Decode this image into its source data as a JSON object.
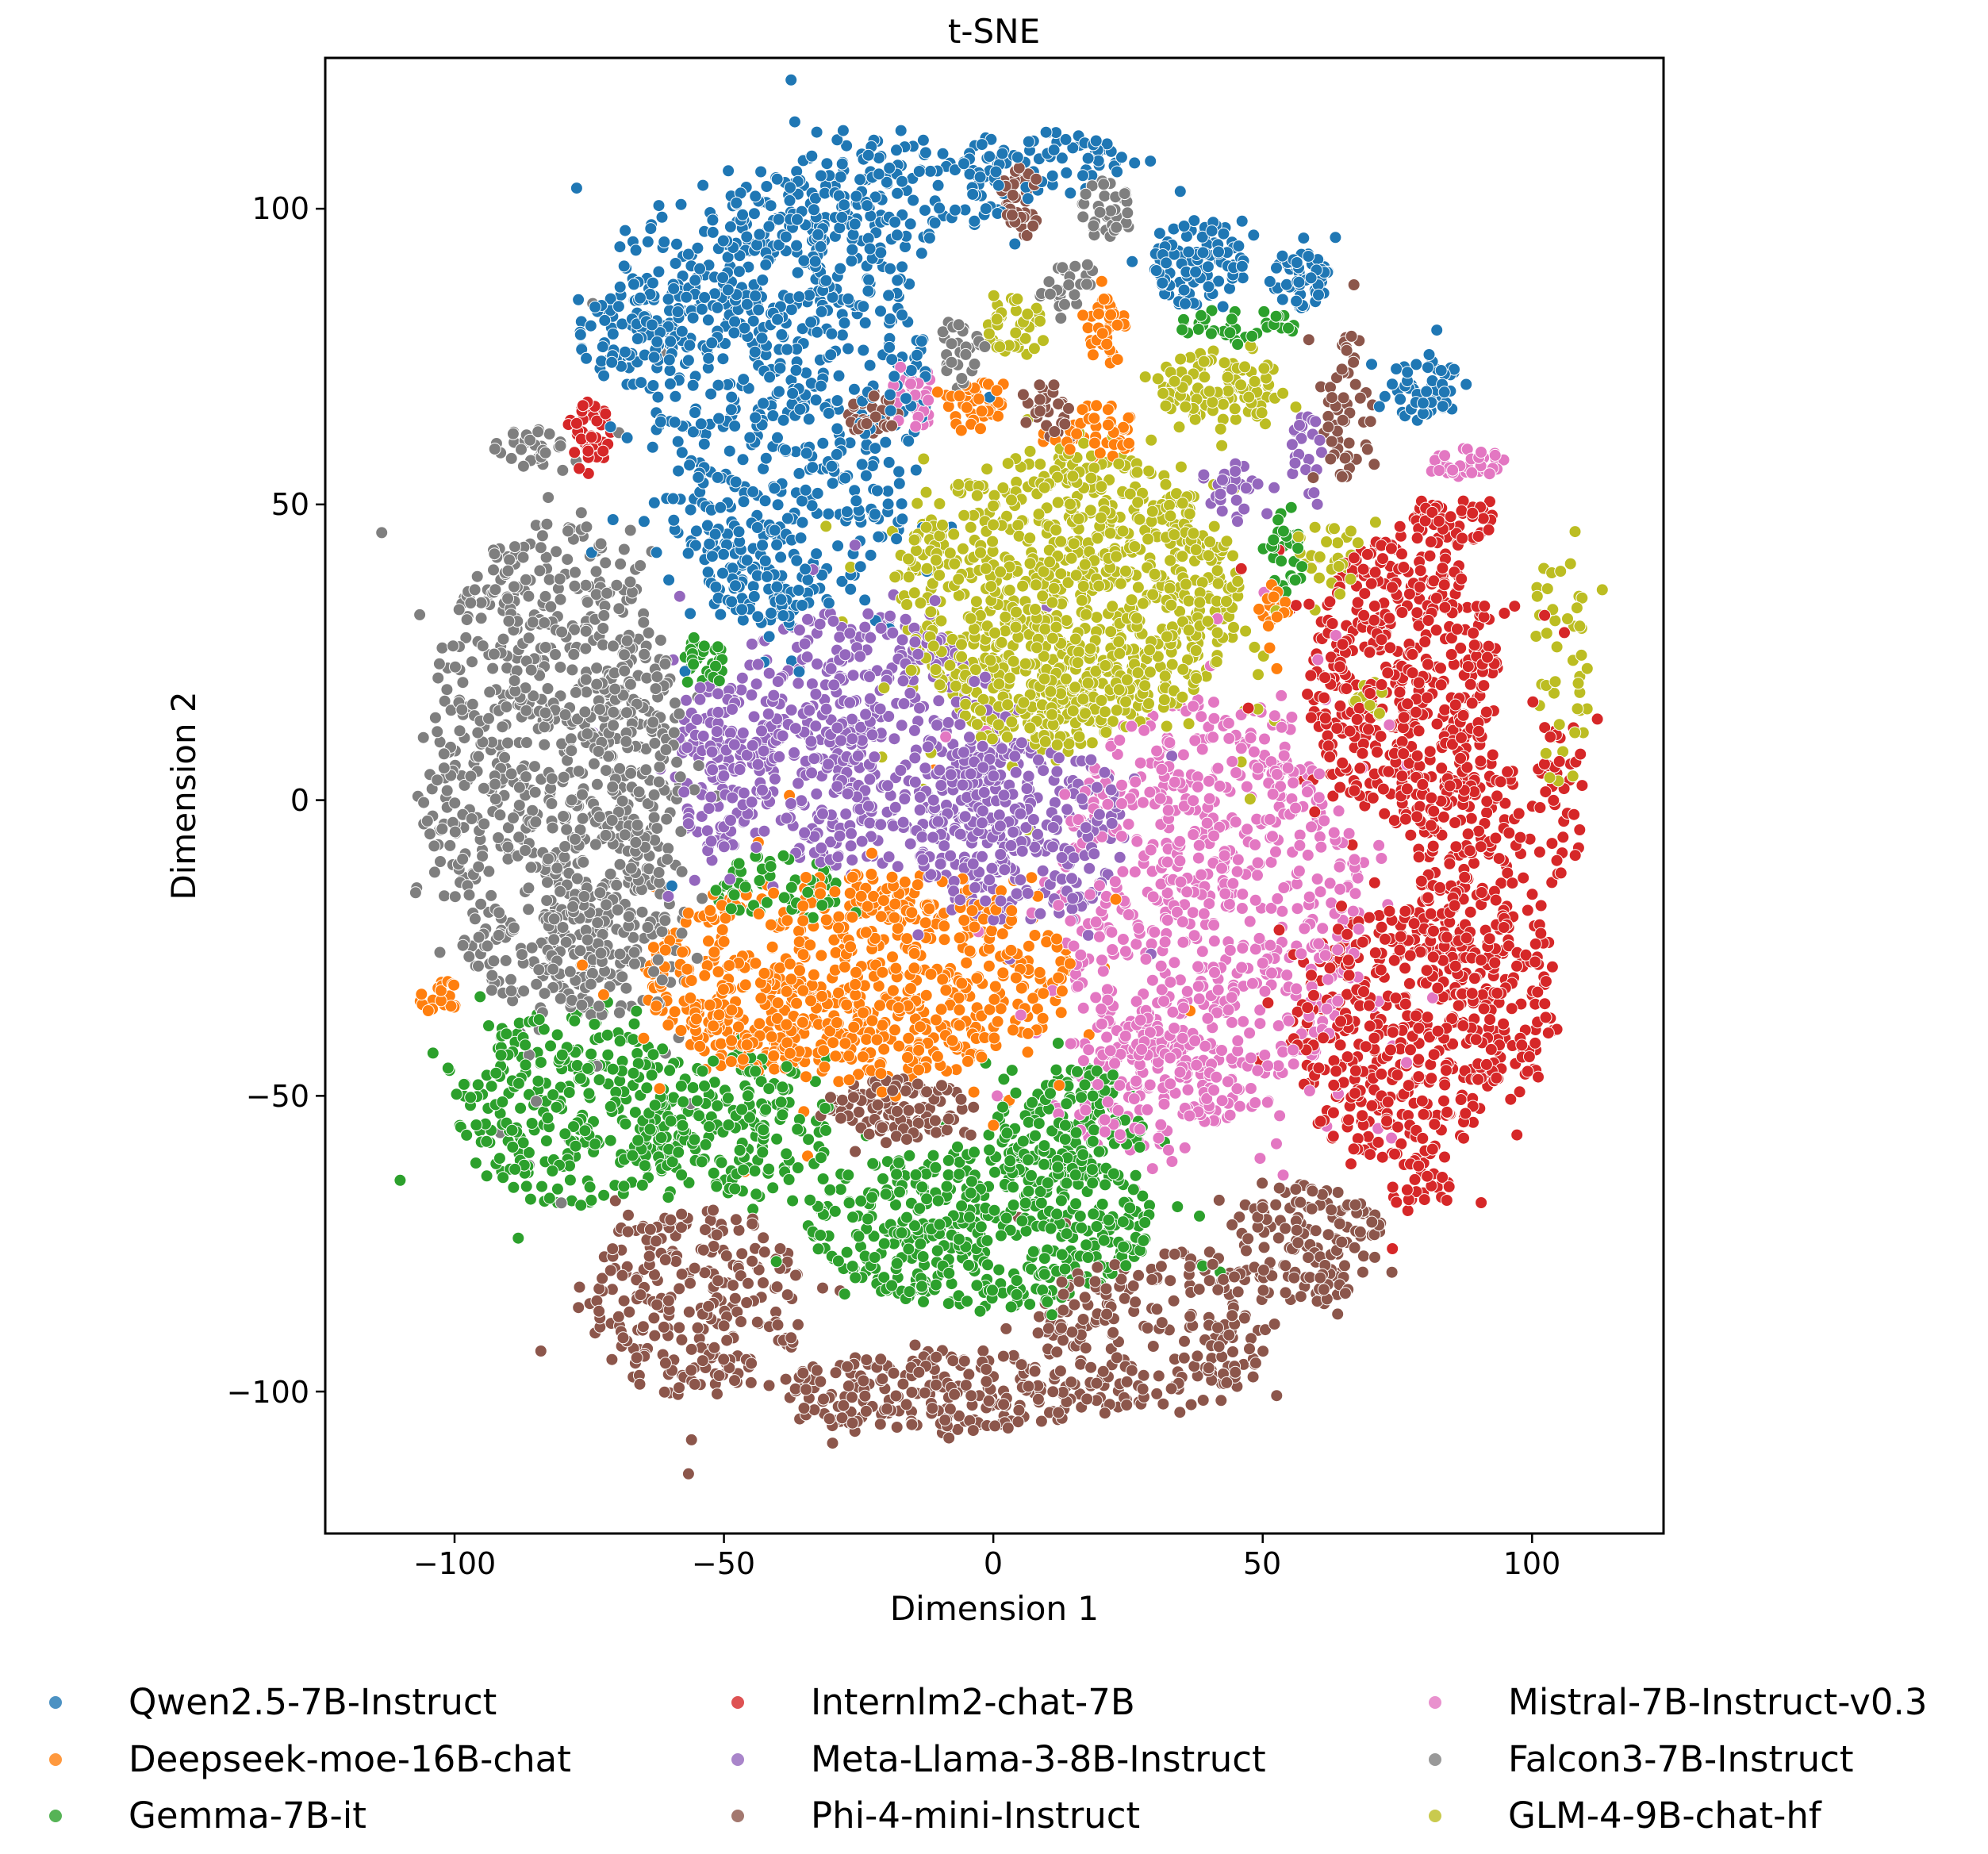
{
  "chart_data": {
    "type": "scatter",
    "title": "t-SNE",
    "xlabel": "Dimension 1",
    "ylabel": "Dimension 2",
    "xlim": [
      -124,
      124.4
    ],
    "ylim": [
      -124,
      125.5
    ],
    "xticks": [
      -100,
      -50,
      0,
      50,
      100
    ],
    "yticks": [
      -100,
      -50,
      0,
      50,
      100
    ],
    "xtick_labels": [
      "−100",
      "−50",
      "0",
      "50",
      "100"
    ],
    "ytick_labels": [
      "−100",
      "−50",
      "0",
      "50",
      "100"
    ],
    "grid": false,
    "legend_position": "below, 3 columns",
    "marker": {
      "radius_px": 7.5,
      "edgecolor": "#ffffff",
      "edgewidth": 1
    },
    "series": [
      {
        "name": "Qwen2.5-7B-Instruct",
        "color": "#1f77b4",
        "clusters": [
          {
            "cx": -38,
            "cy": 68,
            "rx": 26,
            "ry": 38,
            "n": 620
          },
          {
            "cx": -50,
            "cy": 88,
            "rx": 22,
            "ry": 14,
            "n": 160
          },
          {
            "cx": -68,
            "cy": 78,
            "rx": 9,
            "ry": 8,
            "n": 60
          },
          {
            "cx": -18,
            "cy": 103,
            "rx": 22,
            "ry": 9,
            "n": 150
          },
          {
            "cx": 10,
            "cy": 108,
            "rx": 16,
            "ry": 5,
            "n": 70
          },
          {
            "cx": 38,
            "cy": 91,
            "rx": 9,
            "ry": 8,
            "n": 110
          },
          {
            "cx": 57,
            "cy": 88,
            "rx": 6,
            "ry": 5,
            "n": 60
          },
          {
            "cx": 80,
            "cy": 70,
            "rx": 7,
            "ry": 6,
            "n": 55
          },
          {
            "cx": -44,
            "cy": 38,
            "rx": 12,
            "ry": 8,
            "n": 80
          }
        ]
      },
      {
        "name": "Deepseek-moe-16B-chat",
        "color": "#ff7f0e",
        "clusters": [
          {
            "cx": -25,
            "cy": -30,
            "rx": 40,
            "ry": 18,
            "n": 700
          },
          {
            "cx": -40,
            "cy": -38,
            "rx": 18,
            "ry": 8,
            "n": 120
          },
          {
            "cx": 21,
            "cy": 80,
            "rx": 4,
            "ry": 6,
            "n": 40
          },
          {
            "cx": -4,
            "cy": 67,
            "rx": 6,
            "ry": 4,
            "n": 40
          },
          {
            "cx": 20,
            "cy": 62,
            "rx": 7,
            "ry": 5,
            "n": 50
          },
          {
            "cx": -103,
            "cy": -33,
            "rx": 4,
            "ry": 3,
            "n": 20
          },
          {
            "cx": 52,
            "cy": 30,
            "rx": 3,
            "ry": 8,
            "n": 18
          }
        ]
      },
      {
        "name": "Gemma-7B-it",
        "color": "#2ca02c",
        "clusters": [
          {
            "cx": -78,
            "cy": -52,
            "rx": 22,
            "ry": 17,
            "n": 300
          },
          {
            "cx": -48,
            "cy": -55,
            "rx": 18,
            "ry": 12,
            "n": 180
          },
          {
            "cx": -2,
            "cy": -72,
            "rx": 32,
            "ry": 14,
            "n": 520
          },
          {
            "cx": 15,
            "cy": -55,
            "rx": 14,
            "ry": 10,
            "n": 140
          },
          {
            "cx": -40,
            "cy": -15,
            "rx": 12,
            "ry": 6,
            "n": 60
          },
          {
            "cx": -54,
            "cy": 23,
            "rx": 4,
            "ry": 5,
            "n": 30
          },
          {
            "cx": 45,
            "cy": 80,
            "rx": 12,
            "ry": 3,
            "n": 40
          },
          {
            "cx": 54,
            "cy": 42,
            "rx": 4,
            "ry": 8,
            "n": 30
          }
        ]
      },
      {
        "name": "Internlm2-chat-7B",
        "color": "#d62728",
        "clusters": [
          {
            "cx": 76,
            "cy": 20,
            "rx": 18,
            "ry": 25,
            "n": 480
          },
          {
            "cx": 88,
            "cy": -8,
            "rx": 10,
            "ry": 22,
            "n": 200
          },
          {
            "cx": 75,
            "cy": -40,
            "rx": 20,
            "ry": 22,
            "n": 420
          },
          {
            "cx": 97,
            "cy": -35,
            "rx": 8,
            "ry": 18,
            "n": 90
          },
          {
            "cx": 105,
            "cy": 0,
            "rx": 5,
            "ry": 15,
            "n": 40
          },
          {
            "cx": 84,
            "cy": 47,
            "rx": 9,
            "ry": 4,
            "n": 60
          },
          {
            "cx": -75,
            "cy": 62,
            "rx": 4,
            "ry": 6,
            "n": 40
          },
          {
            "cx": 80,
            "cy": -65,
            "rx": 6,
            "ry": 6,
            "n": 30
          }
        ]
      },
      {
        "name": "Meta-Llama-3-8B-Instruct",
        "color": "#9467bd",
        "clusters": [
          {
            "cx": -25,
            "cy": 10,
            "rx": 28,
            "ry": 22,
            "n": 520
          },
          {
            "cx": 5,
            "cy": -5,
            "rx": 20,
            "ry": 16,
            "n": 320
          },
          {
            "cx": -50,
            "cy": 5,
            "rx": 10,
            "ry": 14,
            "n": 120
          },
          {
            "cx": 45,
            "cy": 52,
            "rx": 5,
            "ry": 5,
            "n": 30
          },
          {
            "cx": 58,
            "cy": 58,
            "rx": 3,
            "ry": 7,
            "n": 25
          }
        ]
      },
      {
        "name": "Phi-4-mini-Instruct",
        "color": "#8c564b",
        "clusters": [
          {
            "cx": -55,
            "cy": -85,
            "rx": 20,
            "ry": 16,
            "n": 260
          },
          {
            "cx": -10,
            "cy": -100,
            "rx": 30,
            "ry": 7,
            "n": 240
          },
          {
            "cx": 30,
            "cy": -90,
            "rx": 22,
            "ry": 14,
            "n": 230
          },
          {
            "cx": 58,
            "cy": -75,
            "rx": 15,
            "ry": 10,
            "n": 150
          },
          {
            "cx": -18,
            "cy": -52,
            "rx": 14,
            "ry": 5,
            "n": 110
          },
          {
            "cx": 5,
            "cy": 101,
            "rx": 4,
            "ry": 6,
            "n": 35
          },
          {
            "cx": -22,
            "cy": 65,
            "rx": 5,
            "ry": 4,
            "n": 30
          },
          {
            "cx": 10,
            "cy": 66,
            "rx": 4,
            "ry": 5,
            "n": 30
          },
          {
            "cx": 66,
            "cy": 66,
            "rx": 5,
            "ry": 13,
            "n": 55
          }
        ]
      },
      {
        "name": "Mistral-7B-Instruct-v0.3",
        "color": "#e377c2",
        "clusters": [
          {
            "cx": 40,
            "cy": -18,
            "rx": 28,
            "ry": 36,
            "n": 760
          },
          {
            "cx": 28,
            "cy": -48,
            "rx": 18,
            "ry": 12,
            "n": 140
          },
          {
            "cx": -15,
            "cy": 68,
            "rx": 4,
            "ry": 6,
            "n": 30
          },
          {
            "cx": 88,
            "cy": 57,
            "rx": 8,
            "ry": 2.5,
            "n": 35
          }
        ]
      },
      {
        "name": "Falcon3-7B-Instruct",
        "color": "#7f7f7f",
        "clusters": [
          {
            "cx": -82,
            "cy": 5,
            "rx": 24,
            "ry": 42,
            "n": 900
          },
          {
            "cx": -70,
            "cy": -20,
            "rx": 14,
            "ry": 18,
            "n": 120
          },
          {
            "cx": -86,
            "cy": 60,
            "rx": 7,
            "ry": 4,
            "n": 30
          },
          {
            "cx": 21,
            "cy": 100,
            "rx": 5,
            "ry": 5,
            "n": 35
          },
          {
            "cx": 13,
            "cy": 87,
            "rx": 5,
            "ry": 4,
            "n": 25
          },
          {
            "cx": -6,
            "cy": 77,
            "rx": 4,
            "ry": 6,
            "n": 28
          }
        ]
      },
      {
        "name": "GLM-4-9B-chat-hf",
        "color": "#bcbd22",
        "clusters": [
          {
            "cx": 14,
            "cy": 35,
            "rx": 32,
            "ry": 24,
            "n": 900
          },
          {
            "cx": 10,
            "cy": 18,
            "rx": 18,
            "ry": 10,
            "n": 160
          },
          {
            "cx": 42,
            "cy": 70,
            "rx": 12,
            "ry": 6,
            "n": 110
          },
          {
            "cx": 4,
            "cy": 80,
            "rx": 6,
            "ry": 5,
            "n": 40
          },
          {
            "cx": 70,
            "cy": 17,
            "rx": 4,
            "ry": 3,
            "n": 15
          },
          {
            "cx": 105,
            "cy": 22,
            "rx": 6,
            "ry": 20,
            "n": 45
          },
          {
            "cx": 62,
            "cy": 42,
            "rx": 6,
            "ry": 6,
            "n": 25
          }
        ]
      }
    ]
  },
  "title": "t-SNE",
  "axes": {
    "xlabel": "Dimension 1",
    "ylabel": "Dimension 2",
    "xticks": [
      "−100",
      "−50",
      "0",
      "50",
      "100"
    ],
    "yticks": [
      "100",
      "50",
      "0",
      "−50",
      "−100"
    ]
  },
  "legend": [
    {
      "label": "Qwen2.5-7B-Instruct",
      "color": "#1f77b4"
    },
    {
      "label": "Deepseek-moe-16B-chat",
      "color": "#ff7f0e"
    },
    {
      "label": "Gemma-7B-it",
      "color": "#2ca02c"
    },
    {
      "label": "Internlm2-chat-7B",
      "color": "#d62728"
    },
    {
      "label": "Meta-Llama-3-8B-Instruct",
      "color": "#9467bd"
    },
    {
      "label": "Phi-4-mini-Instruct",
      "color": "#8c564b"
    },
    {
      "label": "Mistral-7B-Instruct-v0.3",
      "color": "#e377c2"
    },
    {
      "label": "Falcon3-7B-Instruct",
      "color": "#7f7f7f"
    },
    {
      "label": "GLM-4-9B-chat-hf",
      "color": "#bcbd22"
    }
  ]
}
